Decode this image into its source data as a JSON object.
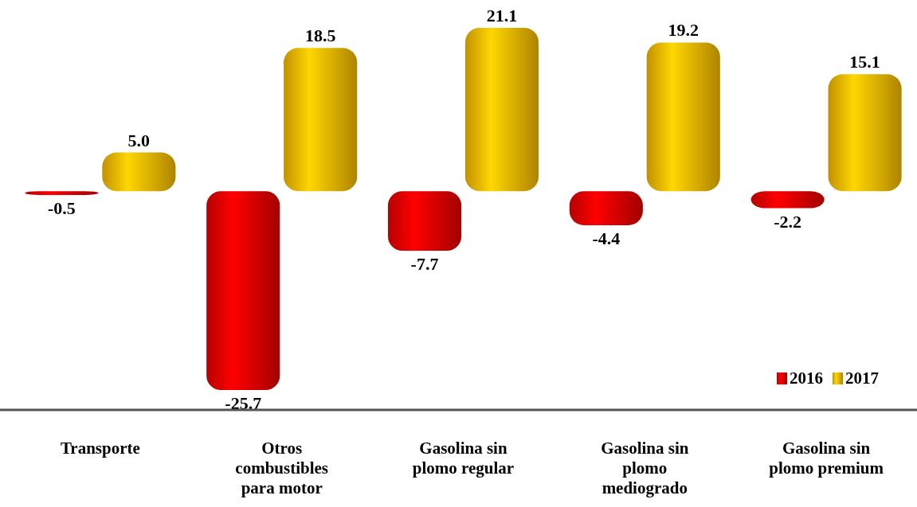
{
  "chart_data": {
    "type": "bar",
    "categories": [
      "Transporte",
      "Otros combustibles para motor",
      "Gasolina sin plomo regular",
      "Gasolina sin plomo mediogrado",
      "Gasolina sin plomo premium"
    ],
    "series": [
      {
        "name": "2016",
        "color": "#e00000",
        "values": [
          -0.5,
          -25.7,
          -7.7,
          -4.4,
          -2.2
        ],
        "value_labels": [
          "-0.5",
          "-25.7",
          "-7.7",
          "-4.4",
          "-2.2"
        ]
      },
      {
        "name": "2017",
        "color": "#f0b400",
        "values": [
          5.0,
          18.5,
          21.1,
          19.2,
          15.1
        ],
        "value_labels": [
          "5.0",
          "18.5",
          "21.1",
          "19.2",
          "15.1"
        ]
      }
    ],
    "legend": "bottom right"
  }
}
